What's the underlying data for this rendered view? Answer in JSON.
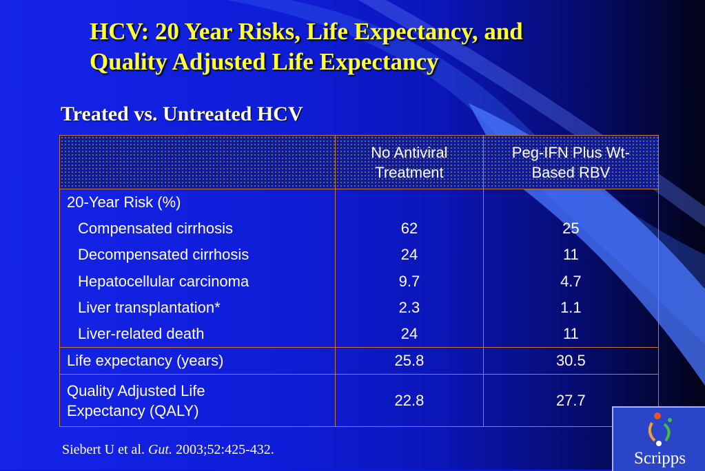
{
  "slide": {
    "title_line1": "HCV: 20 Year Risks, Life Expectancy, and",
    "title_line2": "Quality Adjusted Life Expectancy",
    "subtitle": "Treated vs. Untreated HCV"
  },
  "table": {
    "header": {
      "col1": "",
      "col2_line1": "No Antiviral",
      "col2_line2": "Treatment",
      "col3_line1": "Peg-IFN Plus Wt-",
      "col3_line2": "Based RBV"
    },
    "risk_section": {
      "heading": "20-Year Risk (%)",
      "rows": [
        {
          "label": "Compensated cirrhosis",
          "untreated": "62",
          "treated": "25"
        },
        {
          "label": "Decompensated cirrhosis",
          "untreated": "24",
          "treated": "11"
        },
        {
          "label": "Hepatocellular carcinoma",
          "untreated": "9.7",
          "treated": "4.7"
        },
        {
          "label": "Liver transplantation*",
          "untreated": "2.3",
          "treated": "1.1"
        },
        {
          "label": "Liver-related death",
          "untreated": "24",
          "treated": "11"
        }
      ]
    },
    "life_expectancy": {
      "label": "Life expectancy (years)",
      "untreated": "25.8",
      "treated": "30.5"
    },
    "qaly": {
      "label_line1": "Quality Adjusted Life",
      "label_line2": "Expectancy (QALY)",
      "untreated": "22.8",
      "treated": "27.7"
    }
  },
  "citation": {
    "prefix": "Siebert U et al. ",
    "journal": "Gut.",
    "suffix": " 2003;52:425-432."
  },
  "logo": {
    "name": "Scripps"
  },
  "colors": {
    "title": "#ffff33",
    "background": "#1524e8",
    "table_border": "#c87a3a",
    "swoosh": "#3a64f0"
  }
}
